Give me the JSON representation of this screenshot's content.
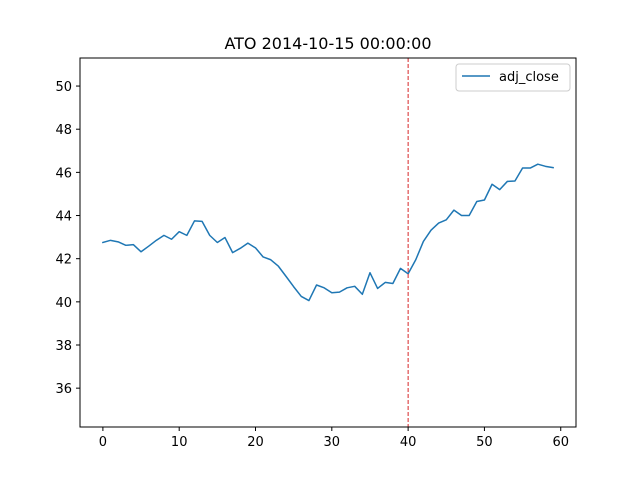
{
  "chart_data": {
    "type": "line",
    "title": "ATO 2014-10-15 00:00:00",
    "xlabel": "",
    "ylabel": "",
    "xlim": [
      -3,
      62
    ],
    "ylim": [
      34.2,
      51.3
    ],
    "xticks": [
      0,
      10,
      20,
      30,
      40,
      50,
      60
    ],
    "yticks": [
      36,
      38,
      40,
      42,
      44,
      46,
      48,
      50
    ],
    "grid": false,
    "legend": {
      "position": "top-right",
      "entries": [
        "adj_close"
      ]
    },
    "series": [
      {
        "name": "adj_close",
        "color": "#1f77b4",
        "x": [
          0,
          1,
          2,
          3,
          4,
          5,
          6,
          7,
          8,
          9,
          10,
          11,
          12,
          13,
          14,
          15,
          16,
          17,
          18,
          19,
          20,
          21,
          22,
          23,
          24,
          25,
          26,
          27,
          28,
          29,
          30,
          31,
          32,
          33,
          34,
          35,
          36,
          37,
          38,
          39,
          40,
          41,
          42,
          43,
          44,
          45,
          46,
          47,
          48,
          49,
          50,
          51,
          52,
          53,
          54,
          55,
          56,
          57,
          58,
          59
        ],
        "values": [
          42.75,
          42.85,
          42.78,
          42.62,
          42.65,
          42.32,
          42.58,
          42.85,
          43.08,
          42.9,
          43.25,
          43.08,
          43.75,
          43.73,
          43.08,
          42.75,
          42.98,
          42.28,
          42.48,
          42.72,
          42.5,
          42.08,
          41.95,
          41.65,
          41.18,
          40.7,
          40.25,
          40.06,
          40.78,
          40.65,
          40.42,
          40.45,
          40.65,
          40.72,
          40.35,
          41.35,
          40.62,
          40.9,
          40.85,
          41.55,
          41.3,
          41.95,
          42.8,
          43.32,
          43.65,
          43.8,
          44.25,
          44.0,
          44.0,
          44.65,
          44.72,
          45.45,
          45.2,
          45.58,
          45.6,
          46.2,
          46.2,
          46.38,
          46.28,
          46.22
        ]
      }
    ],
    "annotations": [
      {
        "type": "vline",
        "x": 40,
        "color": "#d62728",
        "style": "dashed"
      }
    ]
  }
}
